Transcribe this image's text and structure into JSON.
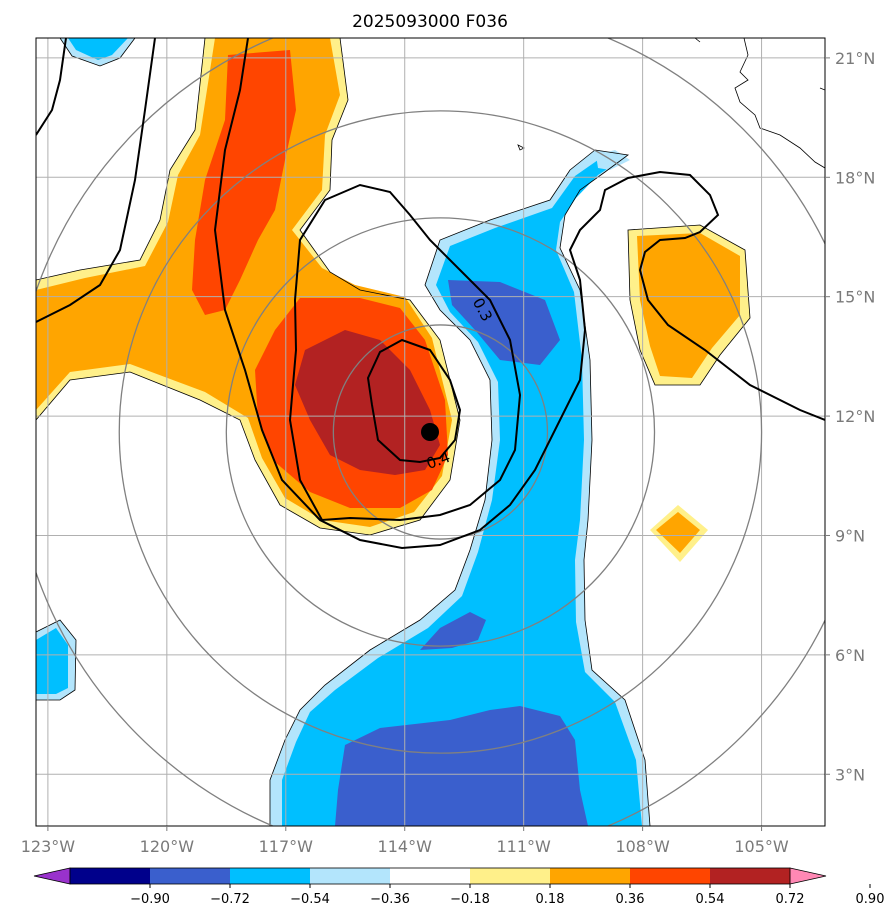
{
  "chart_data": {
    "type": "map",
    "title": "2025093000 F036",
    "x_ticks": [
      "123°W",
      "120°W",
      "117°W",
      "114°W",
      "111°W",
      "108°W",
      "105°W"
    ],
    "x_tick_values": [
      -123,
      -120,
      -117,
      -114,
      -111,
      -108,
      -105
    ],
    "y_ticks": [
      "3°N",
      "6°N",
      "9°N",
      "12°N",
      "15°N",
      "18°N",
      "21°N"
    ],
    "y_tick_values": [
      3,
      6,
      9,
      12,
      15,
      18,
      21
    ],
    "xlim": [
      -123.3,
      -103.4
    ],
    "ylim": [
      1.7,
      21.5
    ],
    "grid": true,
    "center": {
      "lon": -113.1,
      "lat": 11.6
    },
    "range_rings_deg": [
      2.7,
      5.4,
      8.1,
      10.8
    ],
    "colorbar": {
      "orientation": "horizontal",
      "extend": "both",
      "tick_labels": [
        "−0.90",
        "−0.72",
        "−0.54",
        "−0.36",
        "−0.18",
        "0.18",
        "0.36",
        "0.54",
        "0.72",
        "0.90"
      ],
      "bounds": [
        -0.9,
        -0.72,
        -0.54,
        -0.36,
        -0.18,
        0.18,
        0.36,
        0.54,
        0.72,
        0.9
      ],
      "colors": [
        "#9932CC",
        "#00008B",
        "#3A5FCD",
        "#00BFFF",
        "#B3E5FC",
        "#FFFFFF",
        "#FFF08A",
        "#FFA500",
        "#FF4500",
        "#B22222",
        "#FF88B4"
      ]
    },
    "contour_labels": [
      "0.3",
      "0.4"
    ]
  }
}
